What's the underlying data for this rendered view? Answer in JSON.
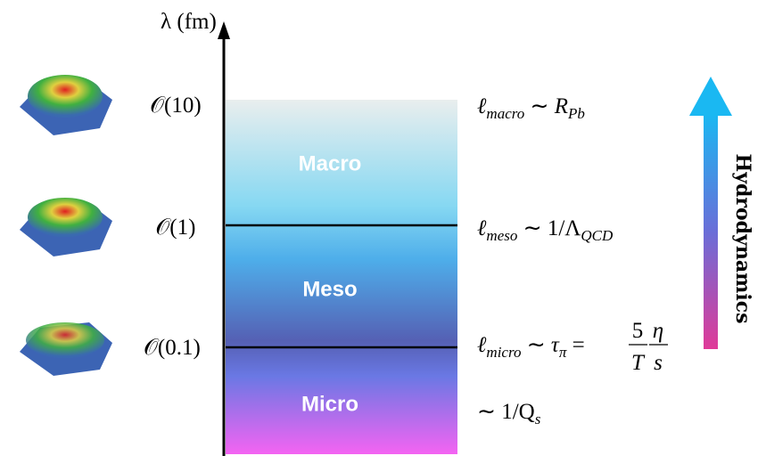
{
  "axis_label": "λ (fm)",
  "scales": [
    {
      "order": "𝒪(10)",
      "band": "Macro",
      "length": {
        "symbol": "ℓ",
        "sub": "macro",
        "relation": " ∼ ",
        "rhs": "R",
        "rhs_sub": "Pb"
      }
    },
    {
      "order": "𝒪(1)",
      "band": "Meso",
      "length": {
        "symbol": "ℓ",
        "sub": "meso",
        "relation": " ∼ ",
        "rhs": "1/Λ",
        "rhs_sub": "QCD"
      }
    },
    {
      "order": "𝒪(0.1)",
      "band": "Micro",
      "length": {
        "symbol": "ℓ",
        "sub": "micro",
        "relation": " ∼ ",
        "rhs": "τ",
        "rhs_sub": "π",
        "equals": " =",
        "frac1": {
          "num": "5",
          "den": "T"
        },
        "frac2": {
          "num": "η",
          "den": "s"
        }
      }
    }
  ],
  "saturation": {
    "text": "∼ 1/Q",
    "sub": "s"
  },
  "arrow_label": "Hydrodynamics"
}
